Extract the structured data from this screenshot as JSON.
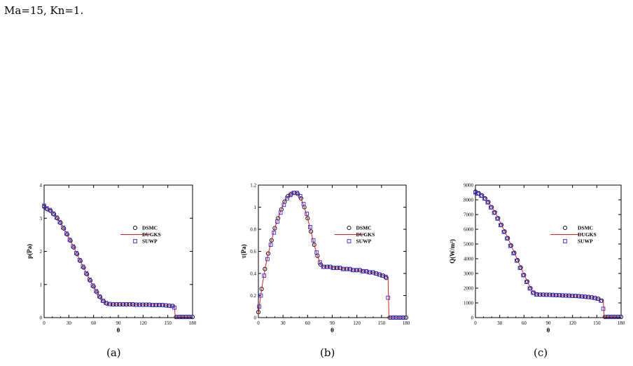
{
  "caption": "Ma=15, Kn=1.",
  "colors": {
    "dsmc": "#000000",
    "dugks": "#e0201b",
    "suwp": "#2a2af0",
    "axis": "#000000"
  },
  "panel_labels": [
    "(a)",
    "(b)",
    "(c)"
  ],
  "chart_data": [
    {
      "type": "line",
      "xlabel": "θ",
      "ylabel": "p(Pa)",
      "xlim": [
        0,
        180
      ],
      "ylim": [
        0,
        4
      ],
      "xticks": [
        0,
        30,
        60,
        90,
        120,
        150,
        180
      ],
      "yticks": [
        0,
        1,
        2,
        3,
        4
      ],
      "ytick_labels": [
        "0",
        "1",
        "2",
        "3",
        "4"
      ],
      "legend": "right-middle",
      "series": [
        {
          "name": "DSMC",
          "marker": "circle",
          "x": [
            0,
            4,
            8,
            12,
            16,
            20,
            24,
            28,
            32,
            36,
            40,
            44,
            48,
            52,
            56,
            60,
            64,
            68,
            72,
            76,
            80,
            84,
            88,
            92,
            96,
            100,
            104,
            108,
            112,
            116,
            120,
            124,
            128,
            132,
            136,
            140,
            144,
            148,
            152,
            156,
            160,
            164,
            168,
            172,
            176,
            180
          ],
          "y": [
            3.35,
            3.27,
            3.22,
            3.12,
            3.0,
            2.86,
            2.69,
            2.51,
            2.32,
            2.12,
            1.92,
            1.71,
            1.51,
            1.31,
            1.12,
            0.94,
            0.77,
            0.62,
            0.5,
            0.43,
            0.41,
            0.4,
            0.4,
            0.4,
            0.4,
            0.4,
            0.4,
            0.4,
            0.39,
            0.39,
            0.39,
            0.39,
            0.39,
            0.38,
            0.38,
            0.38,
            0.38,
            0.37,
            0.36,
            0.35,
            0.02,
            0.02,
            0.02,
            0.02,
            0.02,
            0.02
          ]
        },
        {
          "name": "DUGKS",
          "marker": "line",
          "x": [
            0,
            4,
            8,
            12,
            16,
            20,
            24,
            28,
            32,
            36,
            40,
            44,
            48,
            52,
            56,
            60,
            64,
            68,
            72,
            76,
            80,
            84,
            88,
            92,
            96,
            100,
            104,
            108,
            112,
            116,
            120,
            124,
            128,
            132,
            136,
            140,
            144,
            148,
            152,
            156,
            158,
            159,
            162,
            166,
            170,
            175,
            180
          ],
          "y": [
            3.4,
            3.3,
            3.24,
            3.13,
            3.0,
            2.86,
            2.69,
            2.51,
            2.32,
            2.12,
            1.92,
            1.71,
            1.51,
            1.31,
            1.12,
            0.94,
            0.77,
            0.62,
            0.5,
            0.43,
            0.41,
            0.4,
            0.4,
            0.4,
            0.4,
            0.4,
            0.4,
            0.4,
            0.39,
            0.39,
            0.39,
            0.39,
            0.39,
            0.38,
            0.38,
            0.38,
            0.38,
            0.37,
            0.36,
            0.35,
            0.34,
            0.02,
            0.02,
            0.02,
            0.02,
            0.02,
            0.02
          ]
        },
        {
          "name": "SUWP",
          "marker": "square",
          "x": [
            0,
            3,
            7,
            11,
            15,
            19,
            23,
            27,
            31,
            35,
            39,
            43,
            47,
            51,
            55,
            59,
            63,
            67,
            71,
            75,
            79,
            83,
            87,
            91,
            95,
            99,
            103,
            107,
            111,
            115,
            119,
            123,
            127,
            131,
            135,
            139,
            143,
            147,
            151,
            155,
            158,
            162,
            166,
            170,
            174,
            178
          ],
          "y": [
            3.38,
            3.3,
            3.25,
            3.14,
            3.02,
            2.88,
            2.72,
            2.54,
            2.35,
            2.15,
            1.95,
            1.74,
            1.54,
            1.34,
            1.15,
            0.97,
            0.8,
            0.64,
            0.51,
            0.44,
            0.41,
            0.4,
            0.4,
            0.4,
            0.4,
            0.4,
            0.4,
            0.4,
            0.39,
            0.39,
            0.39,
            0.39,
            0.39,
            0.38,
            0.38,
            0.38,
            0.38,
            0.37,
            0.36,
            0.35,
            0.3,
            0.02,
            0.02,
            0.02,
            0.02,
            0.02
          ]
        }
      ]
    },
    {
      "type": "line",
      "xlabel": "θ",
      "ylabel": "τ(Pa)",
      "xlim": [
        0,
        180
      ],
      "ylim": [
        0,
        1.2
      ],
      "xticks": [
        0,
        30,
        60,
        90,
        120,
        150,
        180
      ],
      "yticks": [
        0,
        0.2,
        0.4,
        0.6,
        0.8,
        1.0,
        1.2
      ],
      "ytick_labels": [
        "0",
        "0.2",
        "0.4",
        "0.6",
        "0.8",
        "1",
        "1.2"
      ],
      "legend": "right-middle",
      "series": [
        {
          "name": "DSMC",
          "marker": "circle",
          "x": [
            0,
            4,
            8,
            12,
            16,
            20,
            24,
            28,
            32,
            36,
            40,
            44,
            48,
            52,
            56,
            60,
            64,
            68,
            72,
            76,
            80,
            84,
            88,
            92,
            96,
            100,
            104,
            108,
            112,
            116,
            120,
            124,
            128,
            132,
            136,
            140,
            144,
            148,
            152,
            156,
            160,
            164,
            168,
            172,
            176,
            180
          ],
          "y": [
            0.05,
            0.26,
            0.44,
            0.58,
            0.7,
            0.81,
            0.9,
            0.98,
            1.05,
            1.1,
            1.12,
            1.13,
            1.12,
            1.08,
            1.0,
            0.9,
            0.78,
            0.66,
            0.56,
            0.48,
            0.46,
            0.46,
            0.46,
            0.45,
            0.45,
            0.45,
            0.44,
            0.44,
            0.44,
            0.43,
            0.43,
            0.43,
            0.42,
            0.42,
            0.41,
            0.41,
            0.4,
            0.39,
            0.38,
            0.36,
            0.0,
            0.0,
            0.0,
            0.0,
            0.0,
            0.0
          ]
        },
        {
          "name": "DUGKS",
          "marker": "line",
          "x": [
            0,
            2,
            4,
            8,
            12,
            16,
            20,
            24,
            28,
            32,
            36,
            40,
            44,
            48,
            52,
            56,
            60,
            64,
            68,
            72,
            76,
            80,
            84,
            88,
            92,
            96,
            100,
            104,
            108,
            112,
            116,
            120,
            124,
            128,
            132,
            136,
            140,
            144,
            148,
            152,
            156,
            158,
            159,
            162,
            166,
            170,
            175,
            180
          ],
          "y": [
            0.03,
            0.15,
            0.26,
            0.44,
            0.58,
            0.7,
            0.81,
            0.9,
            0.98,
            1.05,
            1.1,
            1.12,
            1.13,
            1.12,
            1.08,
            1.0,
            0.9,
            0.78,
            0.66,
            0.56,
            0.48,
            0.46,
            0.46,
            0.46,
            0.45,
            0.45,
            0.45,
            0.44,
            0.44,
            0.44,
            0.43,
            0.43,
            0.43,
            0.42,
            0.42,
            0.41,
            0.41,
            0.4,
            0.39,
            0.38,
            0.37,
            0.36,
            0.0,
            0.0,
            0.0,
            0.0,
            0.0,
            0.0
          ]
        },
        {
          "name": "SUWP",
          "marker": "square",
          "x": [
            1,
            3,
            7,
            11,
            15,
            19,
            23,
            27,
            31,
            35,
            39,
            43,
            47,
            51,
            55,
            59,
            63,
            67,
            71,
            75,
            79,
            83,
            87,
            91,
            95,
            99,
            103,
            107,
            111,
            115,
            119,
            123,
            127,
            131,
            135,
            139,
            143,
            147,
            151,
            155,
            158,
            162,
            166,
            170,
            174,
            178
          ],
          "y": [
            0.1,
            0.2,
            0.38,
            0.53,
            0.66,
            0.77,
            0.87,
            0.95,
            1.02,
            1.08,
            1.11,
            1.13,
            1.13,
            1.1,
            1.03,
            0.94,
            0.82,
            0.7,
            0.59,
            0.5,
            0.46,
            0.46,
            0.46,
            0.45,
            0.45,
            0.45,
            0.44,
            0.44,
            0.44,
            0.43,
            0.43,
            0.43,
            0.42,
            0.42,
            0.41,
            0.41,
            0.4,
            0.39,
            0.38,
            0.37,
            0.18,
            0.0,
            0.0,
            0.0,
            0.0,
            0.0
          ]
        }
      ]
    },
    {
      "type": "line",
      "xlabel": "θ",
      "ylabel": "Q(W/m²)",
      "xlim": [
        0,
        180
      ],
      "ylim": [
        0,
        9000
      ],
      "xticks": [
        0,
        30,
        60,
        90,
        120,
        150,
        180
      ],
      "yticks": [
        0,
        1000,
        2000,
        3000,
        4000,
        5000,
        6000,
        7000,
        8000,
        9000
      ],
      "ytick_labels": [
        "0",
        "1000",
        "2000",
        "3000",
        "4000",
        "5000",
        "6000",
        "7000",
        "8000",
        "9000"
      ],
      "legend": "right-middle",
      "series": [
        {
          "name": "DSMC",
          "marker": "circle",
          "x": [
            0,
            4,
            8,
            12,
            16,
            20,
            24,
            28,
            32,
            36,
            40,
            44,
            48,
            52,
            56,
            60,
            64,
            68,
            72,
            76,
            80,
            84,
            88,
            92,
            96,
            100,
            104,
            108,
            112,
            116,
            120,
            124,
            128,
            132,
            136,
            140,
            144,
            148,
            152,
            156,
            160,
            164,
            168,
            172,
            176,
            180
          ],
          "y": [
            8550,
            8450,
            8300,
            8100,
            7850,
            7500,
            7150,
            6750,
            6300,
            5850,
            5400,
            4900,
            4400,
            3900,
            3400,
            2900,
            2450,
            2000,
            1700,
            1580,
            1560,
            1560,
            1550,
            1550,
            1540,
            1530,
            1520,
            1510,
            1500,
            1490,
            1480,
            1470,
            1460,
            1440,
            1420,
            1400,
            1380,
            1340,
            1280,
            1150,
            50,
            50,
            50,
            50,
            50,
            50
          ]
        },
        {
          "name": "DUGKS",
          "marker": "line",
          "x": [
            0,
            4,
            8,
            12,
            16,
            20,
            24,
            28,
            32,
            36,
            40,
            44,
            48,
            52,
            56,
            60,
            64,
            68,
            72,
            76,
            80,
            84,
            88,
            92,
            96,
            100,
            104,
            108,
            112,
            116,
            120,
            124,
            128,
            132,
            136,
            140,
            144,
            148,
            152,
            156,
            158,
            159,
            162,
            166,
            170,
            175,
            180
          ],
          "y": [
            8600,
            8480,
            8320,
            8120,
            7870,
            7520,
            7170,
            6770,
            6320,
            5870,
            5420,
            4920,
            4420,
            3920,
            3420,
            2920,
            2470,
            2020,
            1710,
            1590,
            1570,
            1560,
            1550,
            1550,
            1540,
            1530,
            1520,
            1510,
            1500,
            1490,
            1480,
            1470,
            1460,
            1440,
            1420,
            1400,
            1380,
            1340,
            1280,
            1200,
            1100,
            50,
            50,
            50,
            50,
            50,
            50
          ]
        },
        {
          "name": "SUWP",
          "marker": "square",
          "x": [
            0,
            3,
            7,
            11,
            15,
            19,
            23,
            27,
            31,
            35,
            39,
            43,
            47,
            51,
            55,
            59,
            63,
            67,
            71,
            75,
            79,
            83,
            87,
            91,
            95,
            99,
            103,
            107,
            111,
            115,
            119,
            123,
            127,
            131,
            135,
            139,
            143,
            147,
            151,
            155,
            158,
            162,
            166,
            170,
            174,
            178
          ],
          "y": [
            8500,
            8420,
            8280,
            8080,
            7820,
            7480,
            7120,
            6720,
            6280,
            5820,
            5370,
            4870,
            4370,
            3870,
            3370,
            2880,
            2420,
            1980,
            1680,
            1570,
            1560,
            1560,
            1550,
            1550,
            1540,
            1530,
            1520,
            1510,
            1500,
            1490,
            1480,
            1470,
            1460,
            1440,
            1420,
            1400,
            1380,
            1340,
            1280,
            1150,
            600,
            50,
            50,
            50,
            50,
            50
          ]
        }
      ]
    }
  ]
}
